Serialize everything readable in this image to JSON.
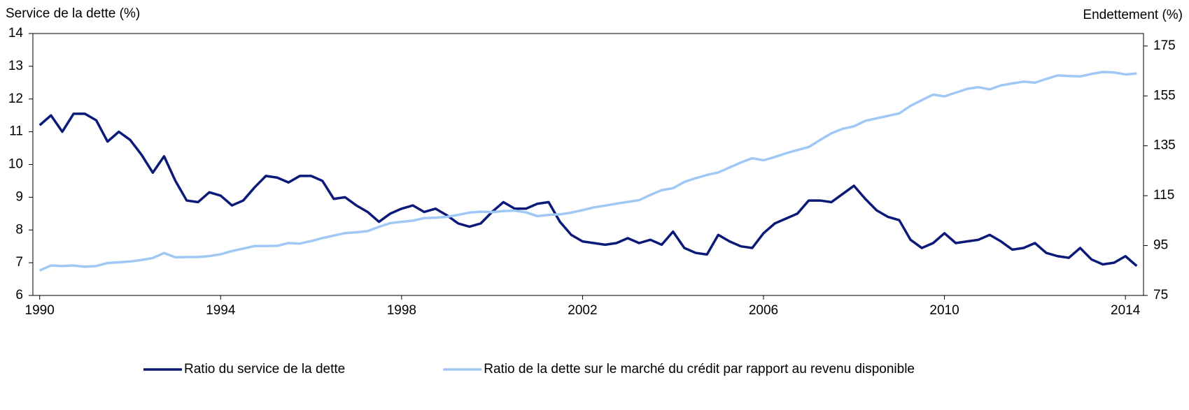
{
  "chart_data": {
    "type": "line",
    "y_label": "Service de la dette (%)",
    "y2_label": "Endettement (%)",
    "x": [
      1990,
      1990.25,
      1990.5,
      1990.75,
      1991,
      1991.25,
      1991.5,
      1991.75,
      1992,
      1992.25,
      1992.5,
      1992.75,
      1993,
      1993.25,
      1993.5,
      1993.75,
      1994,
      1994.25,
      1994.5,
      1994.75,
      1995,
      1995.25,
      1995.5,
      1995.75,
      1996,
      1996.25,
      1996.5,
      1996.75,
      1997,
      1997.25,
      1997.5,
      1997.75,
      1998,
      1998.25,
      1998.5,
      1998.75,
      1999,
      1999.25,
      1999.5,
      1999.75,
      2000,
      2000.25,
      2000.5,
      2000.75,
      2001,
      2001.25,
      2001.5,
      2001.75,
      2002,
      2002.25,
      2002.5,
      2002.75,
      2003,
      2003.25,
      2003.5,
      2003.75,
      2004,
      2004.25,
      2004.5,
      2004.75,
      2005,
      2005.25,
      2005.5,
      2005.75,
      2006,
      2006.25,
      2006.5,
      2006.75,
      2007,
      2007.25,
      2007.5,
      2007.75,
      2008,
      2008.25,
      2008.5,
      2008.75,
      2009,
      2009.25,
      2009.5,
      2009.75,
      2010,
      2010.25,
      2010.5,
      2010.75,
      2011,
      2011.25,
      2011.5,
      2011.75,
      2012,
      2012.25,
      2012.5,
      2012.75,
      2013,
      2013.25,
      2013.5,
      2013.75,
      2014,
      2014.25
    ],
    "series": [
      {
        "name": "Ratio du service de la dette",
        "color": "#0b1a78",
        "axis": "y",
        "values": [
          11.2,
          11.5,
          11.0,
          11.55,
          11.55,
          11.35,
          10.7,
          11.0,
          10.75,
          10.3,
          9.75,
          10.25,
          9.5,
          8.9,
          8.85,
          9.15,
          9.05,
          8.75,
          8.9,
          9.3,
          9.65,
          9.6,
          9.45,
          9.65,
          9.65,
          9.5,
          8.95,
          9.0,
          8.75,
          8.55,
          8.25,
          8.5,
          8.65,
          8.75,
          8.55,
          8.65,
          8.45,
          8.2,
          8.1,
          8.2,
          8.55,
          8.85,
          8.65,
          8.65,
          8.8,
          8.85,
          8.25,
          7.85,
          7.65,
          7.6,
          7.55,
          7.6,
          7.75,
          7.6,
          7.7,
          7.55,
          7.95,
          7.45,
          7.3,
          7.25,
          7.85,
          7.65,
          7.5,
          7.45,
          7.9,
          8.2,
          8.35,
          8.5,
          8.9,
          8.9,
          8.85,
          9.1,
          9.35,
          8.95,
          8.6,
          8.4,
          8.3,
          7.7,
          7.45,
          7.6,
          7.9,
          7.6,
          7.65,
          7.7,
          7.85,
          7.65,
          7.4,
          7.45,
          7.6,
          7.3,
          7.2,
          7.15,
          7.45,
          7.1,
          6.95,
          7.0,
          7.2,
          6.9
        ]
      },
      {
        "name": "Ratio de la dette sur le marché du crédit par rapport au revenu disponible",
        "color": "#9fc8f5",
        "axis": "y2",
        "values": [
          85,
          87,
          86.8,
          87,
          86.5,
          86.8,
          88,
          88.3,
          88.6,
          89.2,
          90,
          92,
          90.3,
          90.4,
          90.4,
          90.8,
          91.5,
          92.8,
          93.8,
          94.8,
          94.8,
          94.9,
          96,
          95.8,
          96.8,
          98,
          99,
          100,
          100.3,
          100.8,
          102.5,
          104,
          104.5,
          105,
          106,
          106.2,
          106.5,
          107.3,
          108.2,
          108.6,
          108.4,
          108.8,
          109,
          108.3,
          106.8,
          107.3,
          107.5,
          108.2,
          109.2,
          110.3,
          111,
          111.8,
          112.5,
          113.2,
          115.3,
          117.2,
          118,
          120.5,
          122,
          123.3,
          124.3,
          126.3,
          128.3,
          130,
          129.2,
          130.5,
          132,
          133.3,
          134.5,
          137.3,
          140,
          141.8,
          142.8,
          145,
          146,
          147,
          148,
          151,
          153.3,
          155.5,
          154.8,
          156.3,
          157.8,
          158.5,
          157.6,
          159.2,
          160,
          160.7,
          160.3,
          161.8,
          163.2,
          163,
          162.8,
          163.8,
          164.6,
          164.4,
          163.6,
          164
        ]
      }
    ],
    "xlim": [
      1989.85,
      2014.4
    ],
    "xticks": [
      1990,
      1994,
      1998,
      2002,
      2006,
      2010,
      2014
    ],
    "ylim": [
      6,
      14
    ],
    "yticks": [
      6,
      7,
      8,
      9,
      10,
      11,
      12,
      13,
      14
    ],
    "y2lim": [
      75,
      180
    ],
    "y2ticks": [
      75,
      95,
      115,
      135,
      155,
      175
    ],
    "grid": false,
    "legend": "bottom"
  }
}
